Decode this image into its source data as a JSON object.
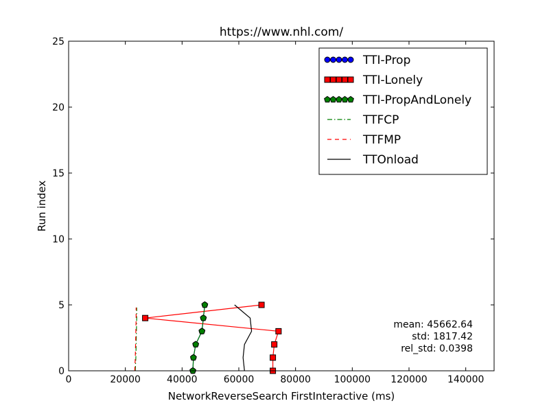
{
  "chart_data": {
    "type": "line",
    "title": "https://www.nhl.com/",
    "xlabel": "NetworkReverseSearch FirstInteractive (ms)",
    "ylabel": "Run index",
    "xlim": [
      0,
      150000
    ],
    "ylim": [
      0,
      25
    ],
    "xticks": [
      0,
      20000,
      40000,
      60000,
      80000,
      100000,
      120000,
      140000
    ],
    "yticks": [
      0,
      5,
      10,
      15,
      20,
      25
    ],
    "grid": false,
    "legend_position": "top-right",
    "series": [
      {
        "name": "TTI-Prop",
        "marker": "circle",
        "color": "#0000ff",
        "line_color": "#0000ff",
        "points": [
          [
            43800,
            0
          ],
          [
            44000,
            1
          ],
          [
            44800,
            2
          ],
          [
            47000,
            3
          ],
          [
            47500,
            4
          ],
          [
            48000,
            5
          ]
        ]
      },
      {
        "name": "TTI-Lonely",
        "marker": "square",
        "color": "#ff0000",
        "line_color": "#ff0000",
        "points": [
          [
            72000,
            0
          ],
          [
            72000,
            1
          ],
          [
            72500,
            2
          ],
          [
            74000,
            3
          ],
          [
            27000,
            4
          ],
          [
            68000,
            5
          ]
        ]
      },
      {
        "name": "TTI-PropAndLonely",
        "marker": "pentagon",
        "color": "#008000",
        "line_color": "#008000",
        "points": [
          [
            43800,
            0
          ],
          [
            44000,
            1
          ],
          [
            44800,
            2
          ],
          [
            47000,
            3
          ],
          [
            47500,
            4
          ],
          [
            48000,
            5
          ]
        ]
      },
      {
        "name": "TTFCP",
        "style": "dashdot",
        "color": "#008000",
        "points": [
          [
            23500,
            0
          ],
          [
            23700,
            1
          ],
          [
            23800,
            2
          ],
          [
            23900,
            3
          ],
          [
            24000,
            4
          ],
          [
            24000,
            4.8
          ]
        ]
      },
      {
        "name": "TTFMP",
        "style": "dashed",
        "color": "#ff0000",
        "points": [
          [
            23300,
            0
          ],
          [
            23500,
            1
          ],
          [
            23600,
            2
          ],
          [
            23700,
            3
          ],
          [
            23800,
            4
          ],
          [
            23800,
            4.8
          ]
        ]
      },
      {
        "name": "TTOnload",
        "style": "solid",
        "color": "#000000",
        "points": [
          [
            62000,
            0
          ],
          [
            61500,
            1
          ],
          [
            62000,
            2
          ],
          [
            64500,
            3
          ],
          [
            64000,
            4
          ],
          [
            58500,
            5
          ]
        ]
      }
    ],
    "annotation": {
      "lines": [
        "mean: 45662.64",
        "std: 1817.42",
        "rel_std: 0.0398"
      ]
    }
  }
}
